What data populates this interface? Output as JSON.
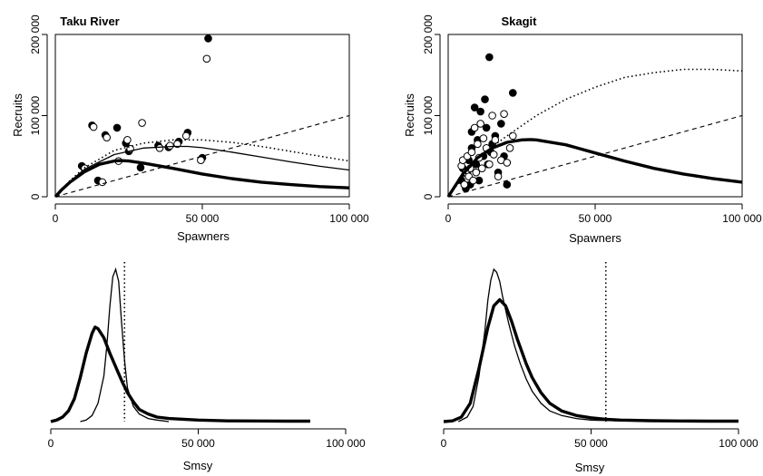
{
  "chart_data": [
    {
      "panel": "taku-scatter",
      "type": "scatter",
      "title": "Taku River",
      "xlabel": "Spawners",
      "ylabel": "Recruits",
      "xlim": [
        0,
        100000
      ],
      "ylim": [
        0,
        200000
      ],
      "xticks": [
        0,
        50000,
        100000
      ],
      "xtick_labels": [
        "0",
        "50 000",
        "100 000"
      ],
      "yticks": [
        0,
        100000,
        200000
      ],
      "ytick_labels": [
        "0",
        "100 000",
        "200 000"
      ],
      "series": [
        {
          "style": "filled-points",
          "x": [
            9000,
            12500,
            14500,
            17000,
            21000,
            24000,
            25000,
            29000,
            35000,
            38500,
            42000,
            45000,
            50000,
            52000
          ],
          "y": [
            38000,
            88000,
            20000,
            76000,
            85000,
            66000,
            56000,
            36000,
            63000,
            61000,
            68000,
            79000,
            48000,
            195000
          ]
        },
        {
          "style": "open-points",
          "x": [
            10000,
            13000,
            16000,
            17500,
            21500,
            24500,
            25500,
            29500,
            35500,
            39000,
            41500,
            44500,
            49500,
            51500
          ],
          "y": [
            35000,
            86000,
            18000,
            73000,
            44000,
            70000,
            59000,
            91000,
            60000,
            63000,
            65000,
            75000,
            45000,
            170000
          ]
        },
        {
          "style": "thick-line",
          "x": [
            0,
            2000,
            5000,
            10000,
            15000,
            20000,
            22000,
            25000,
            30000,
            40000,
            50000,
            60000,
            70000,
            80000,
            90000,
            100000
          ],
          "y": [
            0,
            8000,
            18000,
            31000,
            40000,
            44000,
            44600,
            44000,
            41500,
            35000,
            28000,
            22400,
            18000,
            15000,
            12500,
            11000
          ]
        },
        {
          "style": "thin-line",
          "x": [
            0,
            5000,
            10000,
            20000,
            30000,
            40000,
            45000,
            50000,
            60000,
            70000,
            80000,
            90000,
            100000
          ],
          "y": [
            0,
            19000,
            34000,
            52000,
            60000,
            62000,
            62000,
            60500,
            55000,
            49000,
            43000,
            37500,
            33000
          ]
        },
        {
          "style": "dotted-line",
          "x": [
            0,
            5000,
            10000,
            20000,
            30000,
            40000,
            50000,
            60000,
            70000,
            80000,
            90000,
            100000
          ],
          "y": [
            0,
            20000,
            36000,
            57000,
            66000,
            70000,
            70000,
            67000,
            62000,
            56000,
            50000,
            44000
          ]
        },
        {
          "style": "dashed-line",
          "x": [
            0,
            100000
          ],
          "y": [
            0,
            100000
          ]
        }
      ]
    },
    {
      "panel": "skagit-scatter",
      "type": "scatter",
      "title": "Skagit",
      "xlabel": "Spawners",
      "ylabel": "Recruits",
      "xlim": [
        0,
        100000
      ],
      "ylim": [
        0,
        200000
      ],
      "xticks": [
        0,
        50000,
        100000
      ],
      "xtick_labels": [
        "0",
        "50 000",
        "100 000"
      ],
      "yticks": [
        0,
        100000,
        200000
      ],
      "ytick_labels": [
        "0",
        "100 000",
        "200 000"
      ],
      "series": [
        {
          "style": "filled-points",
          "x": [
            4500,
            5000,
            6000,
            6500,
            7000,
            7500,
            8000,
            8000,
            9000,
            9500,
            10000,
            10500,
            11000,
            12000,
            12500,
            13000,
            13500,
            14000,
            14500,
            15000,
            16000,
            17000,
            18000,
            19000,
            20000,
            22000
          ],
          "y": [
            20000,
            35000,
            10000,
            28000,
            45000,
            15000,
            60000,
            80000,
            110000,
            40000,
            70000,
            20000,
            105000,
            50000,
            120000,
            85000,
            40000,
            172000,
            55000,
            65000,
            75000,
            30000,
            90000,
            50000,
            15000,
            128000
          ]
        },
        {
          "style": "open-points",
          "x": [
            4500,
            5000,
            5500,
            6000,
            6500,
            7000,
            7500,
            8000,
            8500,
            9000,
            9500,
            10000,
            10500,
            11000,
            11500,
            12000,
            13000,
            14000,
            15000,
            15500,
            16000,
            17000,
            18000,
            19000,
            20000,
            21000,
            22000
          ],
          "y": [
            38000,
            45000,
            15000,
            30000,
            50000,
            25000,
            35000,
            55000,
            20000,
            85000,
            30000,
            65000,
            48000,
            90000,
            35000,
            72000,
            60000,
            40000,
            100000,
            52000,
            70000,
            25000,
            45000,
            102000,
            42000,
            60000,
            75000
          ]
        },
        {
          "style": "thick-line",
          "x": [
            0,
            5000,
            10000,
            15000,
            20000,
            25000,
            28000,
            30000,
            40000,
            50000,
            60000,
            70000,
            80000,
            90000,
            100000
          ],
          "y": [
            0,
            28000,
            48000,
            60000,
            67000,
            70000,
            70500,
            70000,
            64000,
            54000,
            44000,
            35000,
            28000,
            22500,
            18000
          ]
        },
        {
          "style": "dotted-line",
          "x": [
            0,
            10000,
            20000,
            30000,
            40000,
            50000,
            60000,
            70000,
            80000,
            90000,
            100000
          ],
          "y": [
            0,
            48000,
            75000,
            100000,
            120000,
            135000,
            147000,
            153000,
            157000,
            157000,
            155000
          ]
        },
        {
          "style": "dashed-line",
          "x": [
            0,
            100000
          ],
          "y": [
            0,
            100000
          ]
        }
      ]
    },
    {
      "panel": "taku-density",
      "type": "line",
      "xlabel": "Smsy",
      "xlim": [
        0,
        100000
      ],
      "xticks": [
        0,
        50000,
        100000
      ],
      "xtick_labels": [
        "0",
        "50 000",
        "100 000"
      ],
      "vline": 25000,
      "series": [
        {
          "style": "thin-line",
          "x": [
            10000,
            12000,
            14000,
            16000,
            18000,
            19000,
            20000,
            21000,
            22000,
            23000,
            24000,
            25000,
            26000,
            28000,
            30000,
            33000,
            36000,
            40000
          ],
          "y": [
            0,
            0.01,
            0.04,
            0.12,
            0.3,
            0.5,
            0.75,
            0.95,
            1.0,
            0.92,
            0.65,
            0.4,
            0.22,
            0.1,
            0.05,
            0.02,
            0.01,
            0
          ]
        },
        {
          "style": "thick-line",
          "x": [
            0,
            2000,
            4000,
            6000,
            8000,
            10000,
            12000,
            14000,
            15000,
            16000,
            18000,
            20000,
            22000,
            24000,
            26000,
            28000,
            30000,
            33000,
            36000,
            40000,
            50000,
            60000,
            70000,
            80000,
            88000
          ],
          "y": [
            0,
            0.01,
            0.03,
            0.07,
            0.15,
            0.29,
            0.45,
            0.58,
            0.62,
            0.61,
            0.55,
            0.45,
            0.36,
            0.27,
            0.19,
            0.13,
            0.08,
            0.05,
            0.03,
            0.02,
            0.01,
            0.005,
            0.004,
            0.003,
            0.003
          ]
        }
      ]
    },
    {
      "panel": "skagit-density",
      "type": "line",
      "xlabel": "Smsy",
      "xlim": [
        0,
        100000
      ],
      "xticks": [
        0,
        50000,
        100000
      ],
      "xtick_labels": [
        "0",
        "50 000",
        "100 000"
      ],
      "vline": 55000,
      "series": [
        {
          "style": "thin-line",
          "x": [
            5000,
            8000,
            10000,
            12000,
            14000,
            15000,
            16000,
            17000,
            18000,
            19000,
            20000,
            22000,
            24000,
            26000,
            28000,
            30000,
            33000,
            36000,
            40000,
            45000,
            50000,
            60000,
            70000,
            80000,
            90000,
            100000
          ],
          "y": [
            0,
            0.03,
            0.1,
            0.3,
            0.6,
            0.8,
            0.93,
            1.0,
            0.98,
            0.92,
            0.82,
            0.65,
            0.5,
            0.38,
            0.28,
            0.2,
            0.12,
            0.07,
            0.04,
            0.02,
            0.01,
            0.005,
            0.003,
            0.002,
            0.001,
            0
          ]
        },
        {
          "style": "thick-line",
          "x": [
            0,
            3000,
            6000,
            9000,
            12000,
            15000,
            17000,
            19000,
            21000,
            23000,
            25000,
            28000,
            30000,
            33000,
            36000,
            40000,
            45000,
            50000,
            55000,
            60000,
            70000,
            80000,
            90000,
            100000
          ],
          "y": [
            0,
            0.005,
            0.03,
            0.12,
            0.35,
            0.62,
            0.76,
            0.8,
            0.76,
            0.66,
            0.54,
            0.38,
            0.29,
            0.19,
            0.12,
            0.07,
            0.04,
            0.025,
            0.015,
            0.01,
            0.006,
            0.004,
            0.003,
            0.003
          ]
        }
      ]
    }
  ]
}
